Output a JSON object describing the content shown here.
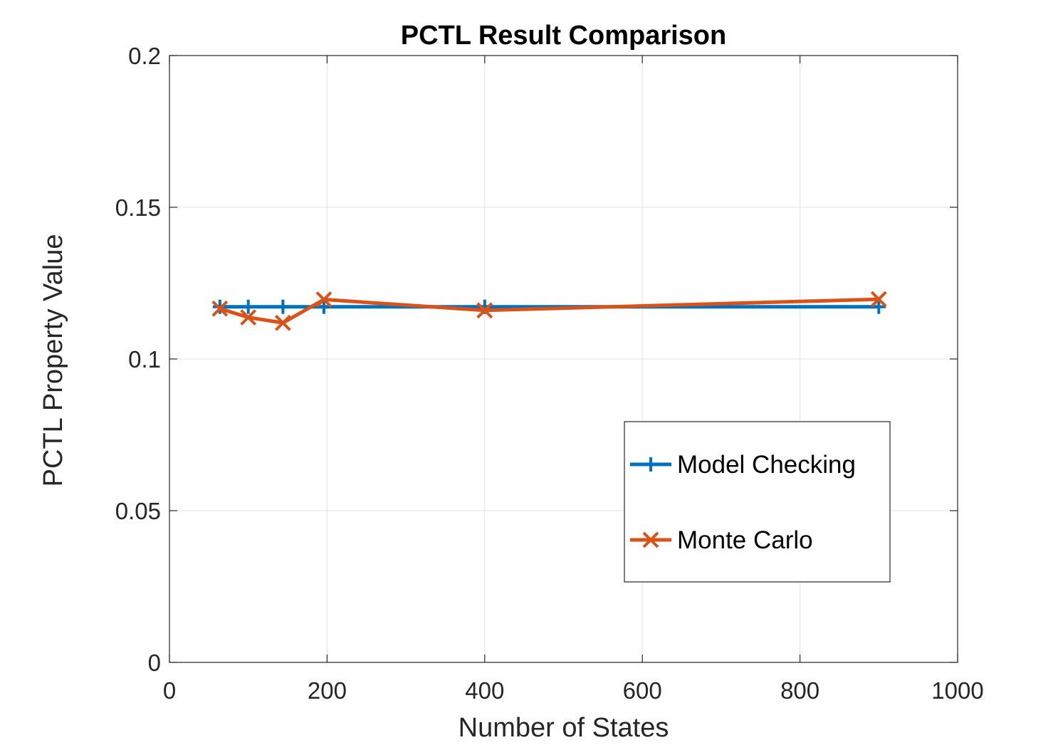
{
  "chart_data": {
    "type": "line",
    "title": "PCTL Result Comparison",
    "xlabel": "Number of States",
    "ylabel": "PCTL Property Value",
    "xlim": [
      0,
      1000
    ],
    "ylim": [
      0,
      0.2
    ],
    "xticks": [
      0,
      200,
      400,
      600,
      800,
      1000
    ],
    "xtick_labels": [
      "0",
      "200",
      "400",
      "600",
      "800",
      "1000"
    ],
    "yticks": [
      0,
      0.05,
      0.1,
      0.15,
      0.2
    ],
    "ytick_labels": [
      "0",
      "0.05",
      "0.1",
      "0.15",
      "0.2"
    ],
    "grid": true,
    "legend_position": "lower-right",
    "series": [
      {
        "name": "Model Checking",
        "color": "#0072BD",
        "marker": "plus",
        "x": [
          64,
          100,
          144,
          196,
          400,
          900
        ],
        "y": [
          0.1172,
          0.1172,
          0.1172,
          0.1172,
          0.1172,
          0.1172
        ]
      },
      {
        "name": "Monte Carlo",
        "color": "#D95319",
        "marker": "x",
        "x": [
          64,
          100,
          144,
          196,
          400,
          900
        ],
        "y": [
          0.1166,
          0.1137,
          0.1119,
          0.1196,
          0.116,
          0.1197
        ]
      }
    ]
  }
}
